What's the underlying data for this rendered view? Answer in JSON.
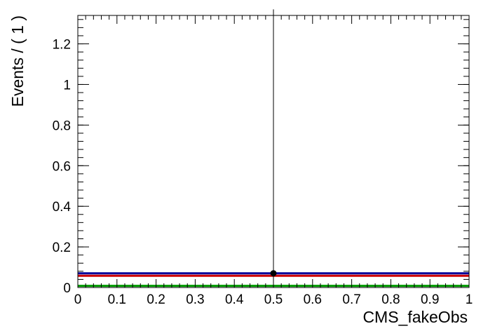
{
  "chart_data": {
    "type": "scatter",
    "xlabel": "CMS_fakeObs",
    "ylabel": "Events / ( 1 )",
    "xlim": [
      0,
      1
    ],
    "ylim": [
      0,
      1.34
    ],
    "x_ticks": [
      "0",
      "0.1",
      "0.2",
      "0.3",
      "0.4",
      "0.5",
      "0.6",
      "0.7",
      "0.8",
      "0.9",
      "1"
    ],
    "y_ticks": [
      "0",
      "0.2",
      "0.4",
      "0.6",
      "0.8",
      "1",
      "1.2"
    ],
    "grid": false,
    "points": [
      {
        "x": 0.5,
        "y": 0.07,
        "y_err_low": 0.07,
        "y_err_high": 1.3
      }
    ],
    "curves": [
      {
        "y": 0.07,
        "color": "#000099"
      },
      {
        "y": 0.058,
        "color": "#cc0000"
      },
      {
        "y": 0.008,
        "color": "#009900"
      }
    ]
  }
}
